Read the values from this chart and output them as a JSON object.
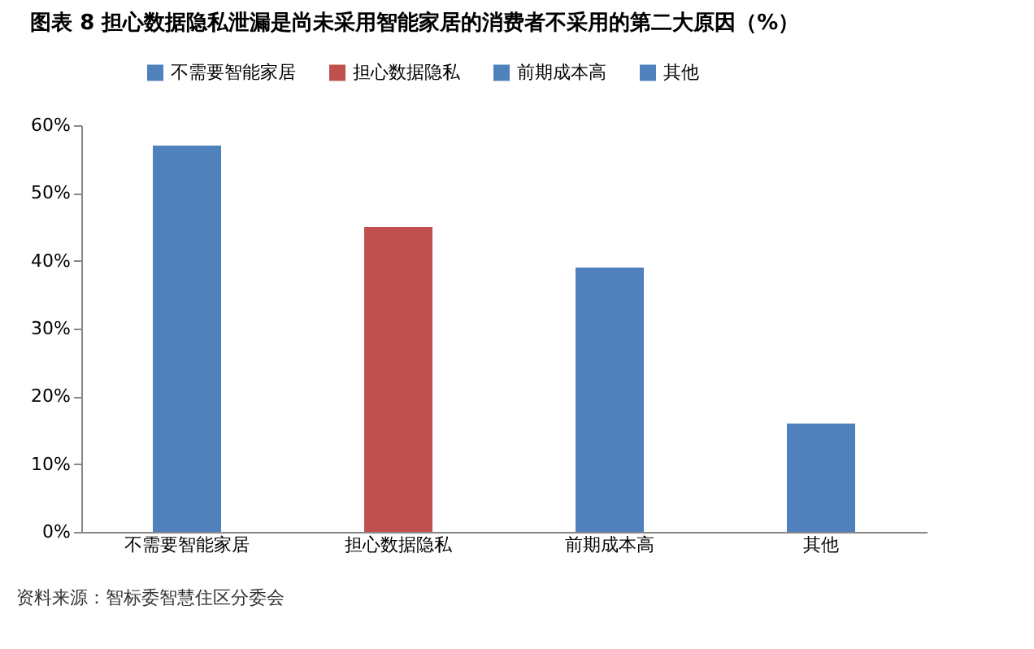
{
  "chart_data": {
    "type": "bar",
    "title": "图表 8 担心数据隐私泄漏是尚未采用智能家居的消费者不采用的第二大原因（%）",
    "categories": [
      "不需要智能家居",
      "担心数据隐私",
      "前期成本高",
      "其他"
    ],
    "series": [
      {
        "name": "不需要智能家居",
        "color": "#4f81bd",
        "values": [
          57,
          null,
          null,
          null
        ]
      },
      {
        "name": "担心数据隐私",
        "color": "#c0504d",
        "values": [
          null,
          45,
          null,
          null
        ]
      },
      {
        "name": "前期成本高",
        "color": "#4f81bd",
        "values": [
          null,
          null,
          39,
          null
        ]
      },
      {
        "name": "其他",
        "color": "#4f81bd",
        "values": [
          null,
          null,
          null,
          16
        ]
      }
    ],
    "ylim": [
      0,
      60
    ],
    "yticks": [
      {
        "value": 0,
        "label": "0%"
      },
      {
        "value": 10,
        "label": "10%"
      },
      {
        "value": 20,
        "label": "20%"
      },
      {
        "value": 30,
        "label": "30%"
      },
      {
        "value": 40,
        "label": "40%"
      },
      {
        "value": 50,
        "label": "50%"
      },
      {
        "value": 60,
        "label": "60%"
      }
    ],
    "grid": false,
    "legend": "top",
    "annotations": [
      "资料来源：智标委智慧住区分委会"
    ]
  }
}
